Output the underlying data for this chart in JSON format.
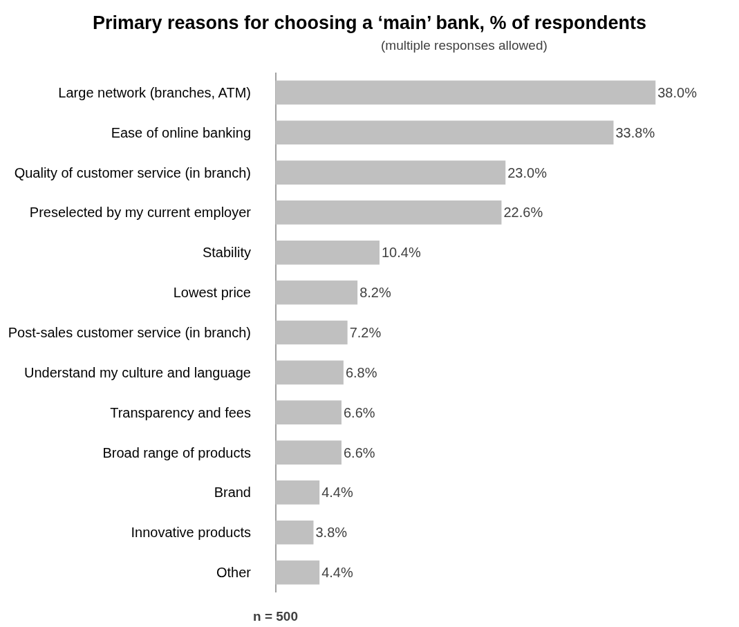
{
  "chart_data": {
    "type": "bar",
    "orientation": "horizontal",
    "title": "Primary reasons for choosing a ‘main’ bank, % of respondents",
    "subtitle": "(multiple responses allowed)",
    "categories": [
      "Large network (branches, ATM)",
      "Ease of online banking",
      "Quality of customer service (in branch)",
      "Preselected by my current employer",
      "Stability",
      "Lowest price",
      "Post-sales customer service (in branch)",
      "Understand my culture and language",
      "Transparency and fees",
      "Broad range of products",
      "Brand",
      "Innovative products",
      "Other"
    ],
    "values": [
      38.0,
      33.8,
      23.0,
      22.6,
      10.4,
      8.2,
      7.2,
      6.8,
      6.6,
      6.6,
      4.4,
      3.8,
      4.4
    ],
    "value_labels": [
      "38.0%",
      "33.8%",
      "23.0%",
      "22.6%",
      "10.4%",
      "8.2%",
      "7.2%",
      "6.8%",
      "6.6%",
      "6.6%",
      "4.4%",
      "3.8%",
      "4.4%"
    ],
    "color": "#c0c0c0",
    "tick_labels": "y",
    "annotations": [
      "n = 500"
    ]
  }
}
